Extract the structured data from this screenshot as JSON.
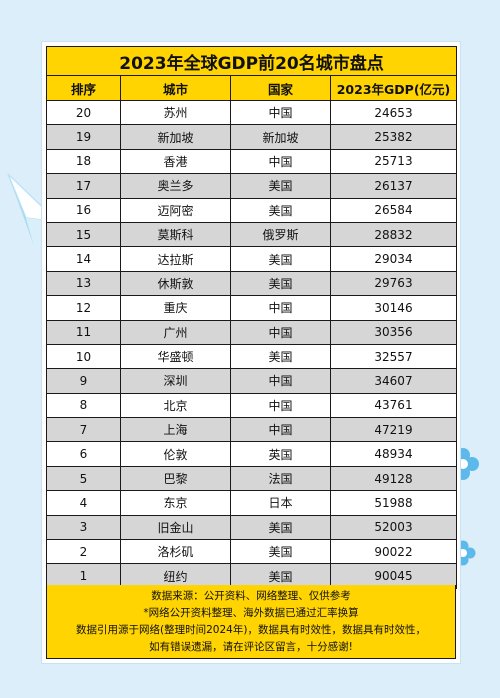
{
  "title": "2023年全球GDP前20名城市盘点",
  "headers": [
    "排序",
    "城市",
    "国家",
    "2023年GDP(亿元)"
  ],
  "rows": [
    {
      "rank": "20",
      "city": "苏州",
      "country": "中国",
      "gdp": "24653"
    },
    {
      "rank": "19",
      "city": "新加坡",
      "country": "新加坡",
      "gdp": "25382"
    },
    {
      "rank": "18",
      "city": "香港",
      "country": "中国",
      "gdp": "25713"
    },
    {
      "rank": "17",
      "city": "奥兰多",
      "country": "美国",
      "gdp": "26137"
    },
    {
      "rank": "16",
      "city": "迈阿密",
      "country": "美国",
      "gdp": "26584"
    },
    {
      "rank": "15",
      "city": "莫斯科",
      "country": "俄罗斯",
      "gdp": "28832"
    },
    {
      "rank": "14",
      "city": "达拉斯",
      "country": "美国",
      "gdp": "29034"
    },
    {
      "rank": "13",
      "city": "休斯敦",
      "country": "美国",
      "gdp": "29763"
    },
    {
      "rank": "12",
      "city": "重庆",
      "country": "中国",
      "gdp": "30146"
    },
    {
      "rank": "11",
      "city": "广州",
      "country": "中国",
      "gdp": "30356"
    },
    {
      "rank": "10",
      "city": "华盛顿",
      "country": "美国",
      "gdp": "32557"
    },
    {
      "rank": "9",
      "city": "深圳",
      "country": "中国",
      "gdp": "34607"
    },
    {
      "rank": "8",
      "city": "北京",
      "country": "中国",
      "gdp": "43761"
    },
    {
      "rank": "7",
      "city": "上海",
      "country": "中国",
      "gdp": "47219"
    },
    {
      "rank": "6",
      "city": "伦敦",
      "country": "英国",
      "gdp": "48934"
    },
    {
      "rank": "5",
      "city": "巴黎",
      "country": "法国",
      "gdp": "49128"
    },
    {
      "rank": "4",
      "city": "东京",
      "country": "日本",
      "gdp": "51988"
    },
    {
      "rank": "3",
      "city": "旧金山",
      "country": "美国",
      "gdp": "52003"
    },
    {
      "rank": "2",
      "city": "洛杉矶",
      "country": "美国",
      "gdp": "90022"
    },
    {
      "rank": "1",
      "city": "纽约",
      "country": "美国",
      "gdp": "90045"
    }
  ],
  "footer": [
    "数据来源：公开资料、网络整理、仅供参考",
    "*网络公开资料整理、海外数据已通过汇率换算",
    "数据引用源于网络(整理时间2024年)，数据具有时效性，数据具有时效性，",
    "如有错误遗漏，请在评论区留言，十分感谢!"
  ],
  "colors": {
    "background": "#dbeefa",
    "header_yellow": "#ffd400",
    "row_gray": "#d6d6d6",
    "accent_blue": "#6ec3ee"
  },
  "icons": [
    "paper-plane-icon",
    "flower-icon"
  ]
}
